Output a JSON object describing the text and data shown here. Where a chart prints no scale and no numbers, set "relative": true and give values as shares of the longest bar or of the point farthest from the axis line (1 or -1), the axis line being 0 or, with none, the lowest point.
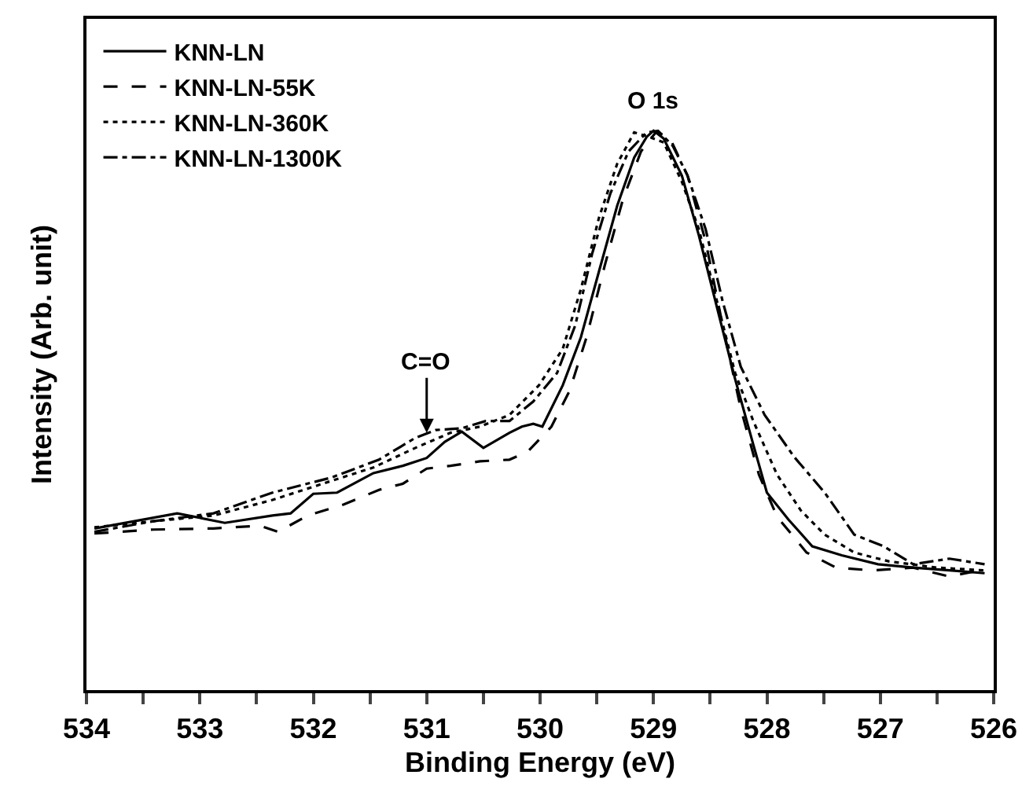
{
  "chart_data": {
    "type": "line",
    "relative": true,
    "xlabel": "Binding Energy (eV)",
    "ylabel": "Intensity (Arb. unit)",
    "xlim": [
      534,
      526
    ],
    "xticks": [
      534,
      {
        "value": 533.5,
        "label": null
      },
      533,
      {
        "value": 532.5,
        "label": null
      },
      532,
      {
        "value": 531.5,
        "label": null
      },
      531,
      {
        "value": 530.5,
        "label": null
      },
      530,
      {
        "value": 529.5,
        "label": null
      },
      529,
      {
        "value": 528.5,
        "label": null
      },
      528,
      {
        "value": 527.5,
        "label": null
      },
      527,
      {
        "value": 526.5,
        "label": null
      },
      526
    ],
    "tick_labels": "x",
    "legend": "top left",
    "marker": "none",
    "annotations": [
      {
        "text": "O 1s",
        "x": 529,
        "y": 1.0
      },
      {
        "text": "C=O",
        "x": 531,
        "y": 0.46
      }
    ],
    "series": [
      {
        "name": "KNN-LN",
        "color": "#000000",
        "line_style": "solid",
        "x": [
          533.93,
          533.2,
          532.78,
          532.36,
          532.2,
          532.0,
          531.79,
          531.47,
          531.21,
          531.0,
          530.84,
          530.69,
          530.5,
          530.27,
          530.16,
          530.06,
          529.98,
          529.8,
          529.64,
          529.48,
          529.32,
          529.17,
          529.06,
          529.0,
          528.91,
          528.75,
          528.6,
          528.44,
          528.28,
          528.12,
          528.0,
          527.81,
          527.6,
          527.34,
          527.02,
          526.71,
          526.39,
          526.08
        ],
        "values": [
          0.289,
          0.316,
          0.299,
          0.312,
          0.316,
          0.351,
          0.353,
          0.388,
          0.401,
          0.415,
          0.444,
          0.462,
          0.433,
          0.46,
          0.471,
          0.476,
          0.471,
          0.545,
          0.631,
          0.749,
          0.866,
          0.952,
          0.989,
          1.0,
          0.986,
          0.92,
          0.813,
          0.684,
          0.556,
          0.439,
          0.353,
          0.305,
          0.257,
          0.241,
          0.225,
          0.219,
          0.214,
          0.209
        ]
      },
      {
        "name": "KNN-LN-55K",
        "color": "#000000",
        "line_style": "dashed",
        "x": [
          533.93,
          533.41,
          532.88,
          532.47,
          532.31,
          532.05,
          531.73,
          531.42,
          531.21,
          531.0,
          530.79,
          530.53,
          530.27,
          530.11,
          529.9,
          529.74,
          529.59,
          529.43,
          529.27,
          529.11,
          528.98,
          528.86,
          528.7,
          528.54,
          528.39,
          528.23,
          528.07,
          527.91,
          527.65,
          527.39,
          527.07,
          526.71,
          526.39,
          526.08
        ],
        "values": [
          0.28,
          0.287,
          0.289,
          0.294,
          0.283,
          0.312,
          0.332,
          0.358,
          0.369,
          0.396,
          0.401,
          0.409,
          0.412,
          0.426,
          0.471,
          0.535,
          0.631,
          0.759,
          0.877,
          0.963,
          0.997,
          0.989,
          0.92,
          0.802,
          0.652,
          0.503,
          0.385,
          0.31,
          0.246,
          0.219,
          0.214,
          0.219,
          0.203,
          0.216
        ]
      },
      {
        "name": "KNN-LN-360K",
        "color": "#000000",
        "line_style": "dotted",
        "x": [
          533.93,
          533.41,
          532.88,
          532.36,
          531.84,
          531.47,
          531.1,
          530.79,
          530.53,
          530.27,
          530.01,
          529.8,
          529.64,
          529.48,
          529.32,
          529.17,
          529.04,
          528.91,
          528.75,
          528.6,
          528.44,
          528.28,
          528.12,
          527.91,
          527.7,
          527.49,
          527.23,
          526.92,
          526.5,
          526.08
        ],
        "values": [
          0.291,
          0.302,
          0.312,
          0.34,
          0.374,
          0.398,
          0.433,
          0.46,
          0.471,
          0.492,
          0.545,
          0.61,
          0.717,
          0.845,
          0.941,
          0.997,
          0.989,
          0.979,
          0.909,
          0.824,
          0.695,
          0.567,
          0.481,
          0.385,
          0.321,
          0.278,
          0.246,
          0.23,
          0.219,
          0.214
        ]
      },
      {
        "name": "KNN-LN-1300K",
        "color": "#000000",
        "line_style": "dashdot",
        "x": [
          533.93,
          533.41,
          532.88,
          532.36,
          531.84,
          531.42,
          531.1,
          530.92,
          530.69,
          530.48,
          530.27,
          530.06,
          529.85,
          529.69,
          529.54,
          529.38,
          529.22,
          529.06,
          528.96,
          528.83,
          528.7,
          528.54,
          528.39,
          528.23,
          528.02,
          527.76,
          527.49,
          527.23,
          526.97,
          526.71,
          526.39,
          526.08
        ],
        "values": [
          0.283,
          0.302,
          0.316,
          0.353,
          0.38,
          0.412,
          0.451,
          0.465,
          0.468,
          0.481,
          0.481,
          0.516,
          0.567,
          0.652,
          0.781,
          0.888,
          0.963,
          0.997,
          1.0,
          0.973,
          0.92,
          0.824,
          0.695,
          0.578,
          0.492,
          0.417,
          0.353,
          0.278,
          0.257,
          0.225,
          0.235,
          0.225
        ]
      }
    ]
  }
}
